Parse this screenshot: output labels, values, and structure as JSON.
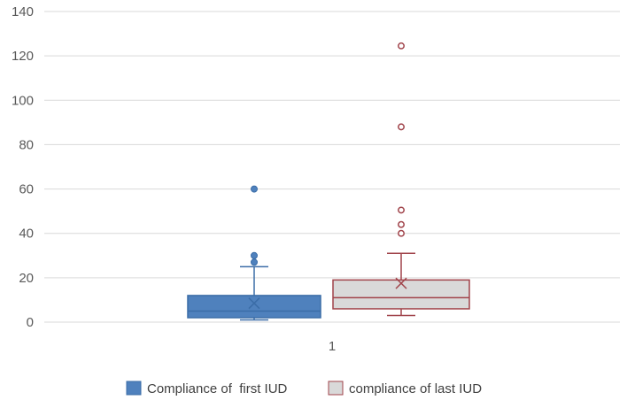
{
  "chart_data": {
    "type": "box",
    "title": "",
    "xlabel": "",
    "ylabel": "",
    "categories": [
      "1"
    ],
    "ylim": [
      0,
      140
    ],
    "yticks": [
      0,
      20,
      40,
      60,
      80,
      100,
      120,
      140
    ],
    "grid": true,
    "legend_position": "bottom",
    "series": [
      {
        "name": "Compliance of  first IUD",
        "color": "#4f81bd",
        "edge_color": "#3b6da7",
        "min": 1,
        "q1": 2,
        "median": 5,
        "q3": 12,
        "max": 25,
        "mean": 8.5,
        "outliers": [
          27,
          30,
          60
        ]
      },
      {
        "name": "compliance of last IUD",
        "color": "#d9d9d9",
        "edge_color": "#a0434a",
        "min": 3,
        "q1": 6,
        "median": 11,
        "q3": 19,
        "max": 31,
        "mean": 17.5,
        "outliers": [
          40,
          44,
          50.5,
          88,
          124.5
        ]
      }
    ]
  }
}
